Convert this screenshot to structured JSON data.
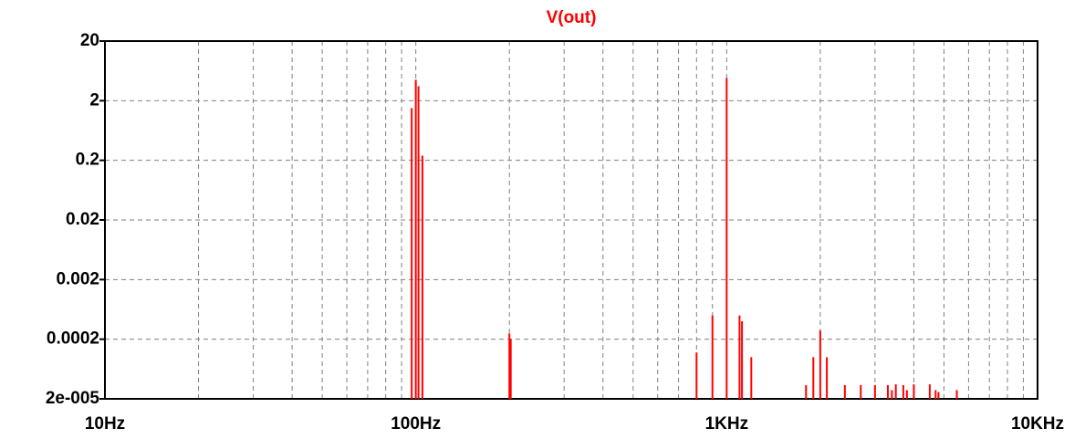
{
  "chart_data": {
    "type": "stem",
    "title": "V(out)",
    "series": [
      {
        "name": "V(out)",
        "color": "#ff0000",
        "x": [
          95,
          97,
          100,
          102,
          105,
          200,
          202,
          800,
          900,
          1000,
          1100,
          1120,
          1200,
          1800,
          1900,
          2000,
          2100,
          2400,
          2700,
          3000,
          3300,
          3400,
          3500,
          3700,
          3800,
          4000,
          4500,
          4700,
          4800,
          5500
        ],
        "values": [
          2e-05,
          1.5,
          4.5,
          3.5,
          0.24,
          0.00025,
          0.0002,
          0.00012,
          0.0005,
          4.8,
          0.0005,
          0.0004,
          0.0001,
          3.4e-05,
          0.0001,
          0.00028,
          0.0001,
          3.4e-05,
          3.4e-05,
          3.4e-05,
          3.4e-05,
          2.8e-05,
          3.5e-05,
          3.4e-05,
          2.8e-05,
          3.5e-05,
          3.5e-05,
          2.8e-05,
          2.6e-05,
          2.8e-05
        ]
      }
    ],
    "xlog": true,
    "ylog": true,
    "xlim": [
      10,
      10000
    ],
    "ylim": [
      2e-05,
      20
    ],
    "xticks": [
      {
        "value": 10,
        "label": "10Hz"
      },
      {
        "value": 100,
        "label": "100Hz"
      },
      {
        "value": 1000,
        "label": "1KHz"
      },
      {
        "value": 10000,
        "label": "10KHz"
      }
    ],
    "xminorticks": [
      20,
      30,
      40,
      50,
      60,
      70,
      80,
      90,
      200,
      300,
      400,
      500,
      600,
      700,
      800,
      900,
      2000,
      3000,
      4000,
      5000,
      6000,
      7000,
      8000,
      9000
    ],
    "yticks": [
      {
        "value": 2e-05,
        "label": "2e-005"
      },
      0.0002,
      0.002,
      0.02,
      0.2,
      2,
      20
    ],
    "grid": true
  }
}
